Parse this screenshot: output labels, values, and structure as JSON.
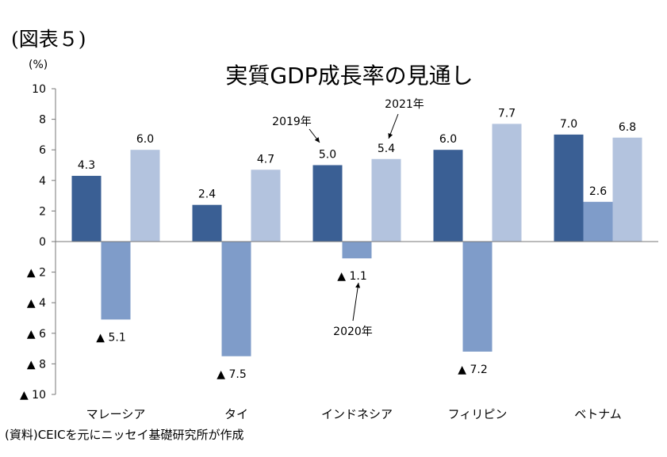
{
  "figure_label": "(図表５)",
  "source_note": "(資料)CEICを元にニッセイ基礎研究所が作成",
  "colors": {
    "2019": "#3a5f94",
    "2020": "#7f9cc9",
    "2021": "#b3c3de",
    "axis": "#777777"
  },
  "chart_data": {
    "type": "bar",
    "title": "実質GDP成長率の見通し",
    "ylabel": "(%)",
    "xlabel": "",
    "ylim": [
      -10,
      10
    ],
    "negative_marker": "▲",
    "yticks": [
      10,
      8,
      6,
      4,
      2,
      0,
      -2,
      -4,
      -6,
      -8,
      -10
    ],
    "ytick_labels": [
      "10",
      "8",
      "6",
      "4",
      "2",
      "0",
      "▲ 2",
      "▲ 4",
      "▲ 6",
      "▲ 8",
      "▲ 10"
    ],
    "categories": [
      "マレーシア",
      "タイ",
      "インドネシア",
      "フィリピン",
      "ベトナム"
    ],
    "series": [
      {
        "name": "2019年",
        "values": [
          4.3,
          2.4,
          5.0,
          6.0,
          7.0
        ],
        "labels": [
          "4.3",
          "2.4",
          "5.0",
          "6.0",
          "7.0"
        ]
      },
      {
        "name": "2020年",
        "values": [
          -5.1,
          -7.5,
          -1.1,
          -7.2,
          2.6
        ],
        "labels": [
          "▲ 5.1",
          "▲ 7.5",
          "▲ 1.1",
          "▲ 7.2",
          "2.6"
        ]
      },
      {
        "name": "2021年",
        "values": [
          6.0,
          4.7,
          5.4,
          7.7,
          6.8
        ],
        "labels": [
          "6.0",
          "4.7",
          "5.4",
          "7.7",
          "6.8"
        ]
      }
    ],
    "grid": false,
    "legend": "annotations"
  }
}
